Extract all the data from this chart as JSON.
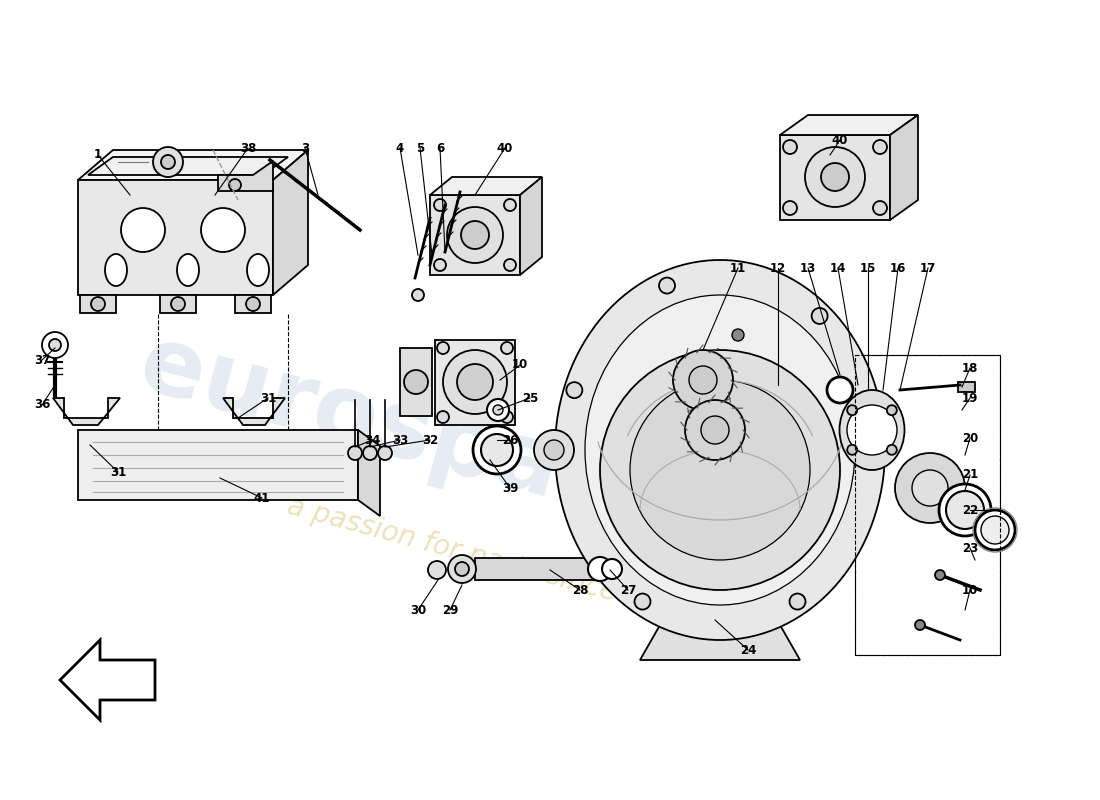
{
  "background_color": "#ffffff",
  "line_color": "#000000",
  "watermark_color": "#c8d4e8",
  "watermark_color2": "#e0c880",
  "figsize": [
    11.0,
    8.0
  ],
  "dpi": 100
}
